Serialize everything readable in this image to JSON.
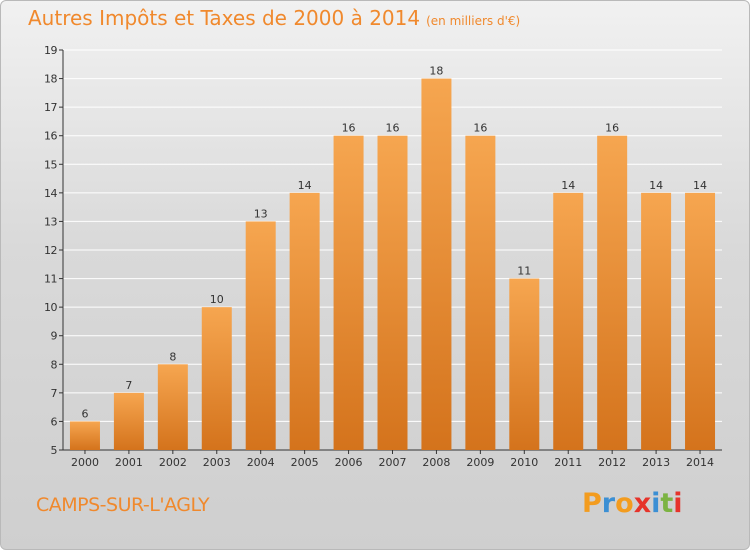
{
  "header": {
    "title": "Autres Impôts et Taxes de 2000 à 2014",
    "subtitle": "(en milliers d'€)"
  },
  "footer": {
    "commune": "CAMPS-SUR-L'AGLY",
    "brand_letters": [
      "P",
      "r",
      "o",
      "x",
      "i",
      "t",
      "i"
    ],
    "brand_colors": [
      "#f39c1f",
      "#3b8fd4",
      "#f39c1f",
      "#e6332a",
      "#3b8fd4",
      "#7cb342",
      "#e6332a"
    ]
  },
  "colors": {
    "bar_top": "#f6a650",
    "bar_bottom": "#d4731c",
    "title": "#f0892d",
    "axis": "#333333"
  },
  "chart_data": {
    "type": "bar",
    "categories": [
      "2000",
      "2001",
      "2002",
      "2003",
      "2004",
      "2005",
      "2006",
      "2007",
      "2008",
      "2009",
      "2010",
      "2011",
      "2012",
      "2013",
      "2014"
    ],
    "values": [
      6,
      7,
      8,
      10,
      13,
      14,
      16,
      16,
      18,
      16,
      11,
      14,
      16,
      14,
      14
    ],
    "ylim": [
      5,
      19
    ],
    "yticks": [
      5,
      6,
      7,
      8,
      9,
      10,
      11,
      12,
      13,
      14,
      15,
      16,
      17,
      18,
      19
    ],
    "grid": "horizontal",
    "data_labels": true
  }
}
